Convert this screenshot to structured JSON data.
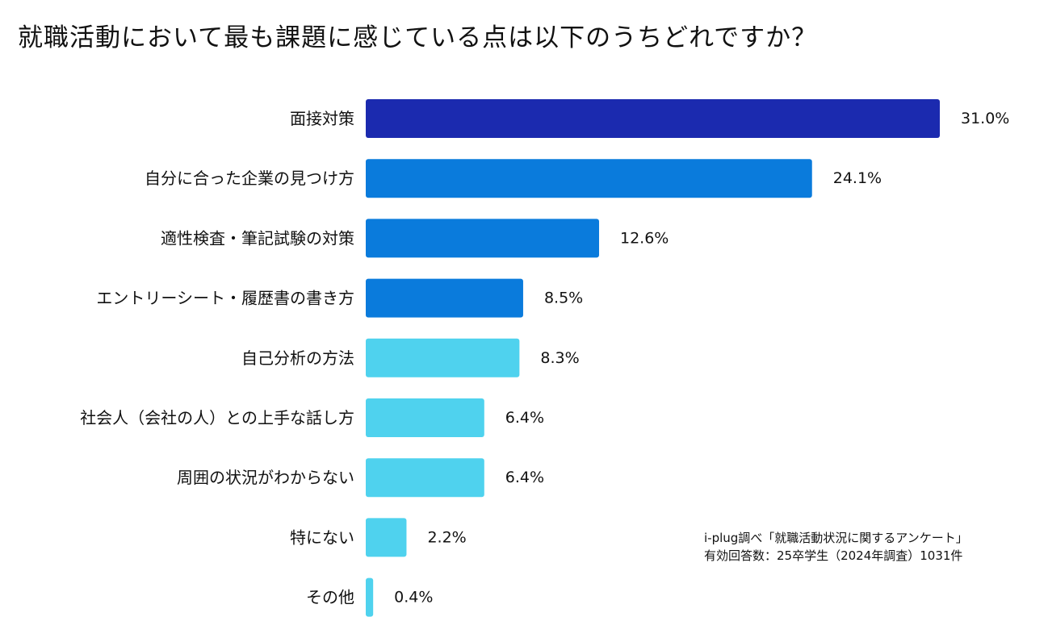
{
  "title": "就職活動において最も課題に感じている点は以下のうちどれですか？",
  "source": {
    "line1": "i-plug調べ「就職活動状況に関するアンケート」",
    "line2": "有効回答数：25卒学生（2024年調査）1031件"
  },
  "chart_data": {
    "type": "bar",
    "orientation": "horizontal",
    "title": "就職活動において最も課題に感じている点は以下のうちどれですか？",
    "unit": "%",
    "xlim": [
      0,
      31
    ],
    "categories": [
      "面接対策",
      "自分に合った企業の見つけ方",
      "適性検査・筆記試験の対策",
      "エントリーシート・履歴書の書き方",
      "自己分析の方法",
      "社会人（会社の人）との上手な話し方",
      "周囲の状況がわからない",
      "特にない",
      "その他"
    ],
    "values": [
      31.0,
      24.1,
      12.6,
      8.5,
      8.3,
      6.4,
      6.4,
      2.2,
      0.4
    ],
    "value_labels": [
      "31.0%",
      "24.1%",
      "12.6%",
      "8.5%",
      "8.3%",
      "6.4%",
      "6.4%",
      "2.2%",
      "0.4%"
    ],
    "colors": [
      "#1b2aaf",
      "#0a7bdc",
      "#0a7bdc",
      "#0a7bdc",
      "#4fd2ee",
      "#4fd2ee",
      "#4fd2ee",
      "#4fd2ee",
      "#4fd2ee"
    ]
  }
}
